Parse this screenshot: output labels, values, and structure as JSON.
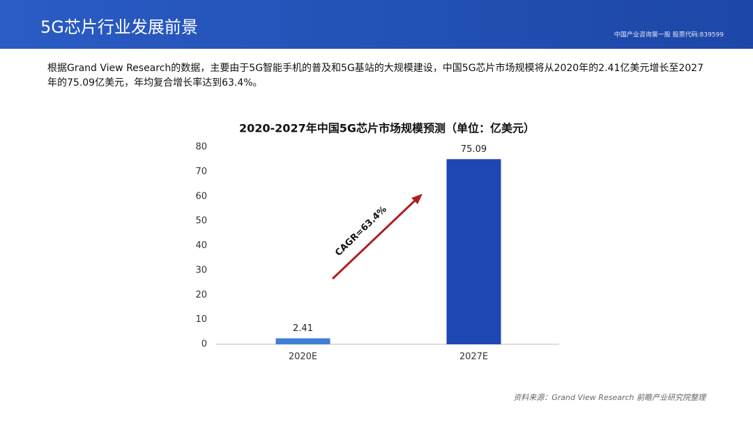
{
  "header": {
    "title": "5G芯片行业发展前景",
    "tagline": "中国产业咨询第一股 股票代码:839599"
  },
  "body": {
    "paragraph": "根据Grand View Research的数据，主要由于5G智能手机的普及和5G基站的大规模建设，中国5G芯片市场规模将从2020年的2.41亿美元增长至2027年的75.09亿美元，年均复合增长率达到63.4%。"
  },
  "chart_data": {
    "type": "bar",
    "title": "2020-2027年中国5G芯片市场规模预测（单位：亿美元）",
    "categories": [
      "2020E",
      "2027E"
    ],
    "values": [
      2.41,
      75.09
    ],
    "colors": [
      "#3d7fd9",
      "#1f47b2"
    ],
    "ylim": [
      0,
      80
    ],
    "yticks": [
      0,
      10,
      20,
      30,
      40,
      50,
      60,
      70,
      80
    ],
    "grid": false,
    "annotation": "CAGR=63.4%",
    "annotation_color": "#b01e1e"
  },
  "footer": {
    "source": "资料来源：Grand View Research 前瞻产业研究院整理"
  }
}
